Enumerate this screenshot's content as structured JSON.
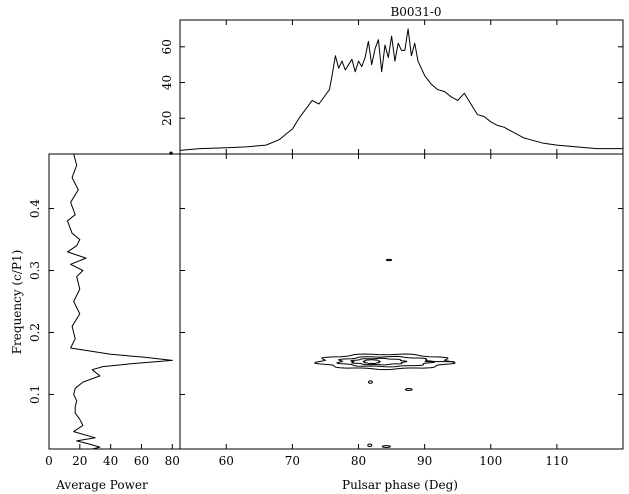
{
  "chart_data": [
    {
      "type": "line",
      "panel": "profile",
      "title": "B0031-0",
      "xlim": [
        53,
        120
      ],
      "ylim": [
        0,
        75
      ],
      "x_ticks": [
        60,
        70,
        80,
        90,
        100,
        110
      ],
      "y_ticks": [
        20,
        40,
        60
      ],
      "y_tick_labels": [
        "20",
        "40",
        "60"
      ],
      "series": [
        {
          "x": [
            53,
            56,
            60,
            63,
            66,
            68,
            69,
            70,
            71,
            72,
            73,
            74,
            75,
            75.6,
            76,
            76.5,
            77,
            77.5,
            78,
            78.5,
            79,
            79.5,
            80,
            80.5,
            81,
            81.5,
            82,
            82.5,
            83,
            83.5,
            84,
            84.5,
            85,
            85.5,
            86,
            86.5,
            87,
            87.5,
            88,
            88.5,
            89,
            90,
            91,
            92,
            93,
            94,
            95,
            96,
            97,
            98,
            99,
            100,
            101,
            102,
            103,
            104,
            105,
            106,
            108,
            110,
            113,
            116,
            120
          ],
          "y": [
            2,
            3,
            3.5,
            4,
            5,
            8,
            11,
            14,
            20,
            25,
            30,
            28,
            33,
            36,
            44,
            55,
            48,
            52,
            47,
            50,
            53,
            46,
            52,
            49,
            54,
            63,
            50,
            59,
            64,
            46,
            61,
            54,
            66,
            52,
            62,
            58,
            58,
            70,
            55,
            62,
            52,
            44,
            39,
            36,
            35,
            32,
            30,
            34,
            28,
            22,
            21,
            18,
            16,
            15,
            13,
            11,
            9,
            8,
            6,
            5,
            4,
            3,
            3
          ]
        }
      ]
    },
    {
      "type": "line",
      "panel": "average-power",
      "xlabel": "Average Power",
      "ylabel": "Frequency (c/P1)",
      "xlim": [
        0,
        85
      ],
      "ylim": [
        0.012,
        0.488
      ],
      "x_ticks": [
        0,
        20,
        40,
        60,
        80
      ],
      "y_ticks": [
        0.1,
        0.2,
        0.3,
        0.4
      ],
      "y_tick_labels": [
        "0.1",
        "0.2",
        "0.3",
        "0.4"
      ],
      "series": [
        {
          "frequency": [
            0.488,
            0.47,
            0.45,
            0.43,
            0.41,
            0.39,
            0.38,
            0.36,
            0.35,
            0.34,
            0.33,
            0.32,
            0.31,
            0.3,
            0.29,
            0.27,
            0.25,
            0.23,
            0.21,
            0.19,
            0.175,
            0.165,
            0.16,
            0.155,
            0.15,
            0.145,
            0.14,
            0.13,
            0.12,
            0.11,
            0.1,
            0.09,
            0.08,
            0.07,
            0.06,
            0.05,
            0.04,
            0.03,
            0.025,
            0.02,
            0.015,
            0.012
          ],
          "power": [
            16,
            18,
            15,
            19,
            14,
            17,
            12,
            15,
            20,
            18,
            12,
            24,
            14,
            22,
            18,
            20,
            16,
            20,
            15,
            17,
            14,
            40,
            62,
            80,
            55,
            35,
            28,
            33,
            22,
            17,
            16,
            18,
            17,
            17,
            20,
            22,
            16,
            30,
            18,
            26,
            33,
            28
          ]
        }
      ]
    },
    {
      "type": "contour",
      "panel": "fluctuation-spectrum",
      "xlabel": "Pulsar phase (Deg)",
      "xlim": [
        53,
        120
      ],
      "ylim": [
        0.012,
        0.488
      ],
      "x_ticks": [
        60,
        70,
        80,
        90,
        100,
        110
      ],
      "x_tick_labels": [
        "60",
        "70",
        "80",
        "90",
        "100",
        "110"
      ],
      "contours": [
        {
          "center": [
            84,
            0.153
          ],
          "half_width": 10,
          "half_height": 0.012
        },
        {
          "center": [
            84,
            0.153
          ],
          "half_width": 7,
          "half_height": 0.008
        },
        {
          "center": [
            83,
            0.153
          ],
          "half_width": 4,
          "half_height": 0.005
        },
        {
          "center": [
            82,
            0.153
          ],
          "half_width": 1.2,
          "half_height": 0.003
        },
        {
          "center": [
            81.8,
            0.12
          ],
          "half_width": 0.3,
          "half_height": 0.002
        },
        {
          "center": [
            87.6,
            0.108
          ],
          "half_width": 0.5,
          "half_height": 0.0015
        },
        {
          "center": [
            84.6,
            0.317
          ],
          "half_width": 0.4,
          "half_height": 0.001
        },
        {
          "center": [
            81.7,
            0.018
          ],
          "half_width": 0.3,
          "half_height": 0.002
        },
        {
          "center": [
            84.2,
            0.016
          ],
          "half_width": 0.6,
          "half_height": 0.0015
        }
      ]
    }
  ]
}
